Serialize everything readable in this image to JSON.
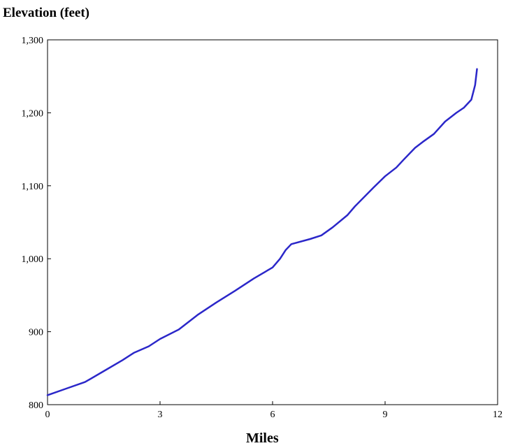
{
  "chart_data": {
    "type": "line",
    "ylabel": "Elevation (feet)",
    "xlabel": "Miles",
    "xlim": [
      0,
      12
    ],
    "ylim": [
      800,
      1300
    ],
    "xticks": [
      0,
      3,
      6,
      9,
      12
    ],
    "xtick_labels": [
      "0",
      "3",
      "6",
      "9",
      "12"
    ],
    "yticks": [
      800,
      900,
      1000,
      1100,
      1200,
      1300
    ],
    "ytick_labels": [
      "800",
      "900",
      "1,000",
      "1,100",
      "1,200",
      "1,300"
    ],
    "grid": false,
    "line_color": "#2b27c9",
    "series": [
      {
        "x": [
          0,
          0.5,
          1.0,
          1.5,
          2.0,
          2.3,
          2.7,
          3.0,
          3.5,
          4.0,
          4.5,
          5.0,
          5.5,
          6.0,
          6.2,
          6.35,
          6.5,
          7.0,
          7.3,
          7.6,
          8.0,
          8.2,
          8.7,
          9.0,
          9.3,
          9.5,
          9.8,
          10.0,
          10.3,
          10.6,
          10.9,
          11.1,
          11.3,
          11.4,
          11.45
        ],
        "y": [
          813,
          822,
          831,
          846,
          861,
          871,
          880,
          890,
          903,
          923,
          940,
          956,
          973,
          988,
          1000,
          1012,
          1020,
          1027,
          1032,
          1043,
          1060,
          1072,
          1098,
          1113,
          1125,
          1136,
          1152,
          1160,
          1171,
          1188,
          1200,
          1207,
          1218,
          1238,
          1260
        ]
      }
    ]
  }
}
